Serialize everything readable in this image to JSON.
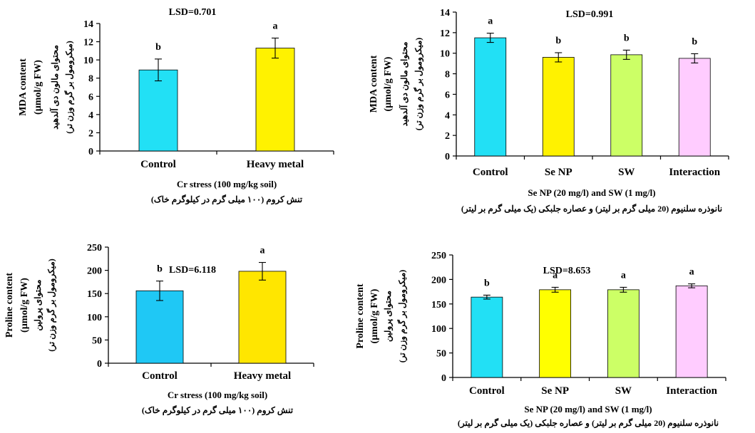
{
  "chart_data": [
    {
      "type": "bar",
      "lsd": "LSD=0.701",
      "categories": [
        "Control",
        "Heavy  metal"
      ],
      "values": [
        8.9,
        11.3
      ],
      "errors": [
        1.2,
        1.1
      ],
      "letters": [
        "b",
        "a"
      ],
      "colors": [
        "#22E0F5",
        "#FFF200"
      ],
      "ylim": [
        0,
        14
      ],
      "yticks": [
        "0",
        "2",
        "4",
        "6",
        "8",
        "10",
        "12",
        "14"
      ],
      "ylabel": "MDA content",
      "ylabel_unit": "(µmol/g FW)",
      "ylabel_fa_1": "محتوای مالون دی آلدهید",
      "ylabel_fa_2": "(میکرومول بر گرم وزن تر)",
      "xlabel": "Cr stress (100 mg/kg soil)",
      "xlabel_fa": "تنش کروم (۱۰۰ میلی گرم در کیلوگرم خاک)"
    },
    {
      "type": "bar",
      "lsd": "LSD=0.991",
      "categories": [
        "Control",
        "Se NP",
        "SW",
        "Interaction"
      ],
      "values": [
        11.5,
        9.6,
        9.85,
        9.5
      ],
      "errors": [
        0.45,
        0.45,
        0.45,
        0.45
      ],
      "letters": [
        "a",
        "b",
        "b",
        "b"
      ],
      "colors": [
        "#22E0F5",
        "#FFF200",
        "#CCFF66",
        "#FFCCFF"
      ],
      "ylim": [
        0,
        14
      ],
      "yticks": [
        "0",
        "2",
        "4",
        "6",
        "8",
        "10",
        "12",
        "14"
      ],
      "ylabel": "MDA content",
      "ylabel_unit": "(µmol/g FW)",
      "ylabel_fa_1": "محتوای مالون دی آلدهید",
      "ylabel_fa_2": "(میکرومول بر گرم وزن تر)",
      "xlabel": "Se NP (20 mg/l) and SW (1 mg/l)",
      "xlabel_fa": "نانوذره سلنیوم (20 میلی گرم بر لیتر) و عصاره جلبکی (یک میلی گرم بر لیتر)"
    },
    {
      "type": "bar",
      "lsd": "LSD=6.118",
      "categories": [
        "Control",
        "Heavy  metal"
      ],
      "values": [
        156,
        198
      ],
      "errors": [
        21,
        19
      ],
      "letters": [
        "b",
        "a"
      ],
      "colors": [
        "#1FC8F5",
        "#FFE600"
      ],
      "ylim": [
        0,
        250
      ],
      "yticks": [
        "0",
        "50",
        "100",
        "150",
        "200",
        "250"
      ],
      "ylabel": "Proline content",
      "ylabel_unit": "(µmol/g FW)",
      "ylabel_fa_1": "محتوای پرولین",
      "ylabel_fa_2": "(میکرومول بر گرم وزن تر)",
      "xlabel": "Cr stress (100 mg/kg soil)",
      "xlabel_fa": "تنش کروم (۱۰۰ میلی گرم در کیلوگرم خاک)"
    },
    {
      "type": "bar",
      "lsd": "LSD=8.653",
      "categories": [
        "Control",
        "Se NP",
        "SW",
        "Interaction"
      ],
      "values": [
        164,
        179,
        179,
        187
      ],
      "errors": [
        4,
        5,
        5,
        4
      ],
      "letters": [
        "b",
        "a",
        "a",
        "a"
      ],
      "colors": [
        "#22E0F5",
        "#FFFF00",
        "#CCFF66",
        "#FFCCFF"
      ],
      "ylim": [
        0,
        250
      ],
      "yticks": [
        "0",
        "50",
        "100",
        "150",
        "200",
        "250"
      ],
      "ylabel": "Proline content",
      "ylabel_unit": "(µmol/g FW)",
      "ylabel_fa_1": "محتوای پرولین",
      "ylabel_fa_2": "(میکرومول بر گرم وزن تر)",
      "xlabel": "Se NP (20 mg/l) and SW (1 mg/l)",
      "xlabel_fa": "نانوذره سلنیوم (20 میلی گرم بر لیتر) و عصاره جلبکی (یک میلی گرم بر لیتر)"
    }
  ]
}
